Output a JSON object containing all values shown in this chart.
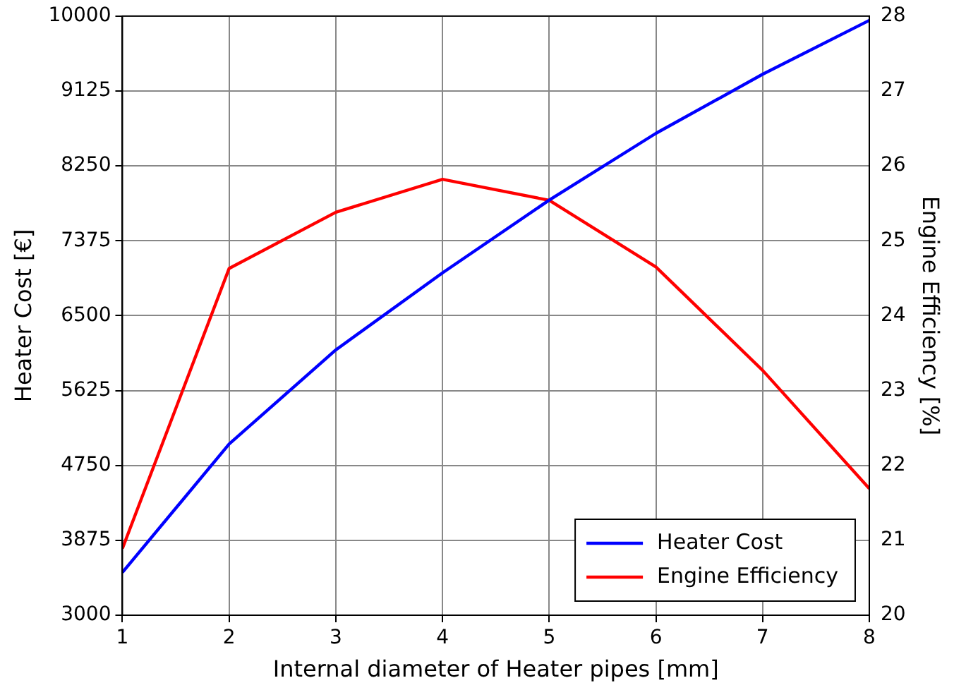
{
  "chart_data": {
    "type": "line",
    "xlabel": "Internal diameter of Heater pipes [mm]",
    "ylabel": "Heater Cost [€]",
    "y2label": "Engine Efficiency [%]",
    "x": [
      1,
      2,
      3,
      4,
      5,
      6,
      7,
      8
    ],
    "series": [
      {
        "name": "Heater Cost",
        "color": "#0000ff",
        "values": [
          3500,
          5000,
          6100,
          7000,
          7850,
          8630,
          9320,
          9950
        ]
      },
      {
        "name": "Engine Efficiency",
        "color": "#ff0000",
        "axis": "y2",
        "values": [
          20.89,
          24.63,
          25.38,
          25.82,
          25.54,
          24.65,
          23.27,
          21.69
        ]
      }
    ],
    "xlim": [
      1,
      8
    ],
    "xticks": [
      1,
      2,
      3,
      4,
      5,
      6,
      7,
      8
    ],
    "ylim": [
      3000,
      10000
    ],
    "yticks": [
      3000,
      3875,
      4750,
      5625,
      6500,
      7375,
      8250,
      9125,
      10000
    ],
    "y2lim": [
      20,
      28
    ],
    "y2ticks": [
      20,
      21,
      22,
      23,
      24,
      25,
      26,
      27,
      28
    ],
    "grid": true,
    "legend": "bottom right",
    "marker": "none",
    "line_style": "solid"
  }
}
